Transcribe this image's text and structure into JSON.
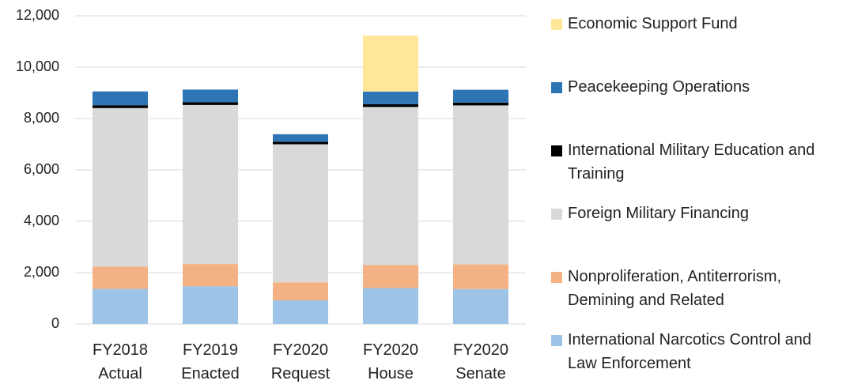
{
  "chart_data": {
    "type": "stacked_bar",
    "categories": [
      "FY2018 Actual",
      "FY2019 Enacted",
      "FY2020 Request",
      "FY2020 House",
      "FY2020 Senate"
    ],
    "series": [
      {
        "name": "International Narcotics Control and Law Enforcement",
        "color": "#9dc3e6",
        "values": [
          1367,
          1470,
          925,
          1400,
          1360
        ]
      },
      {
        "name": "Nonproliferation, Antiterrorism, Demining and Related",
        "color": "#f4b183",
        "values": [
          864,
          865,
          700,
          900,
          960
        ]
      },
      {
        "name": "Foreign Military Financing",
        "color": "#d9d9d9",
        "values": [
          6176,
          6192,
          5373,
          6150,
          6190
        ]
      },
      {
        "name": "International Military Education and Training",
        "color": "#000000",
        "values": [
          110,
          111,
          100,
          110,
          110
        ]
      },
      {
        "name": "Peacekeeping Operations",
        "color": "#2e75b6",
        "values": [
          539,
          489,
          291,
          490,
          500
        ]
      },
      {
        "name": "Economic Support Fund",
        "color": "#ffe699",
        "values": [
          0,
          0,
          0,
          2180,
          0
        ]
      }
    ],
    "ylim": [
      0,
      12000
    ],
    "yticks": [
      0,
      {
        "value": 2000,
        "label": "2,000"
      },
      {
        "value": 4000,
        "label": "4,000"
      },
      {
        "value": 6000,
        "label": "6,000"
      },
      {
        "value": 8000,
        "label": "8,000"
      },
      {
        "value": 10000,
        "label": "10,000"
      },
      {
        "value": 12000,
        "label": "12,000"
      }
    ],
    "grid": true,
    "legend": "right"
  }
}
